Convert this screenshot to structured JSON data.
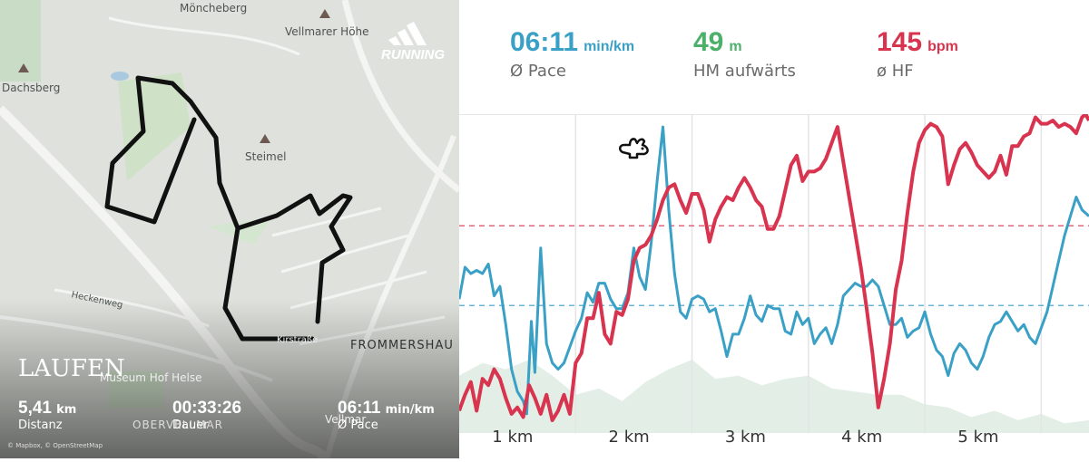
{
  "map": {
    "brand": "LAUFEN",
    "logo_text": "RUNNING",
    "attribution": "© Mapbox, © OpenStreetMap",
    "places": {
      "moencheberg": "Möncheberg",
      "vellmarer_hoehe": "Vellmarer Höhe",
      "dachsberg": "Dachsberg",
      "steimel": "Steimel",
      "heckenweg": "Heckenweg",
      "museum": "Museum Hof Helse",
      "frommershausen": "FROMMERSHAU",
      "oberveliimar": "OBERVELLMAR",
      "vellmar": "Vellmar",
      "kirstrasse": "Kirstraße"
    },
    "summary": {
      "distance_value": "5,41",
      "distance_unit": "km",
      "distance_label": "Distanz",
      "duration_value": "00:33:26",
      "duration_label": "Dauer",
      "pace_value": "06:11",
      "pace_unit": "min/km",
      "pace_label": "Ø Pace"
    }
  },
  "stats": {
    "pace": {
      "value": "06:11",
      "unit": "min/km",
      "label": "Ø Pace",
      "color": "#3aa0c6"
    },
    "elevation": {
      "value": "49",
      "unit": "m",
      "label": "HM aufwärts",
      "color": "#4caf6a"
    },
    "heart_rate": {
      "value": "145",
      "unit": "bpm",
      "label": "ø HF",
      "color": "#d8344f"
    }
  },
  "icons": {
    "rabbit": "rabbit-icon",
    "logo": "adidas-logo-icon"
  },
  "chart_data": {
    "type": "line",
    "x_axis": {
      "ticks": [
        1,
        2,
        3,
        4,
        5
      ],
      "tick_labels": [
        "1 km",
        "2 km",
        "3 km",
        "4 km",
        "5 km"
      ],
      "range": [
        0,
        5.41
      ]
    },
    "grid": true,
    "series": [
      {
        "id": "heart_rate",
        "color": "#d8344f",
        "average": 0.35,
        "values": [
          [
            0.0,
            0.93
          ],
          [
            0.05,
            0.88
          ],
          [
            0.1,
            0.84
          ],
          [
            0.15,
            0.93
          ],
          [
            0.2,
            0.83
          ],
          [
            0.25,
            0.85
          ],
          [
            0.3,
            0.8
          ],
          [
            0.35,
            0.83
          ],
          [
            0.4,
            0.89
          ],
          [
            0.45,
            0.94
          ],
          [
            0.5,
            0.92
          ],
          [
            0.55,
            0.95
          ],
          [
            0.6,
            0.85
          ],
          [
            0.65,
            0.89
          ],
          [
            0.7,
            0.94
          ],
          [
            0.75,
            0.88
          ],
          [
            0.8,
            0.96
          ],
          [
            0.85,
            0.93
          ],
          [
            0.9,
            0.88
          ],
          [
            0.95,
            0.94
          ],
          [
            1.0,
            0.78
          ],
          [
            1.05,
            0.75
          ],
          [
            1.1,
            0.64
          ],
          [
            1.15,
            0.64
          ],
          [
            1.2,
            0.56
          ],
          [
            1.25,
            0.69
          ],
          [
            1.3,
            0.72
          ],
          [
            1.35,
            0.62
          ],
          [
            1.4,
            0.63
          ],
          [
            1.45,
            0.58
          ],
          [
            1.5,
            0.46
          ],
          [
            1.55,
            0.42
          ],
          [
            1.6,
            0.41
          ],
          [
            1.65,
            0.38
          ],
          [
            1.7,
            0.33
          ],
          [
            1.75,
            0.27
          ],
          [
            1.8,
            0.23
          ],
          [
            1.85,
            0.22
          ],
          [
            1.9,
            0.27
          ],
          [
            1.95,
            0.31
          ],
          [
            2.0,
            0.25
          ],
          [
            2.05,
            0.25
          ],
          [
            2.1,
            0.3
          ],
          [
            2.15,
            0.4
          ],
          [
            2.2,
            0.33
          ],
          [
            2.25,
            0.29
          ],
          [
            2.3,
            0.26
          ],
          [
            2.35,
            0.27
          ],
          [
            2.4,
            0.23
          ],
          [
            2.45,
            0.2
          ],
          [
            2.5,
            0.23
          ],
          [
            2.55,
            0.27
          ],
          [
            2.6,
            0.29
          ],
          [
            2.65,
            0.36
          ],
          [
            2.7,
            0.36
          ],
          [
            2.75,
            0.32
          ],
          [
            2.8,
            0.24
          ],
          [
            2.85,
            0.16
          ],
          [
            2.9,
            0.13
          ],
          [
            2.95,
            0.21
          ],
          [
            3.0,
            0.18
          ],
          [
            3.05,
            0.18
          ],
          [
            3.1,
            0.17
          ],
          [
            3.15,
            0.14
          ],
          [
            3.2,
            0.09
          ],
          [
            3.25,
            0.04
          ],
          [
            3.3,
            0.15
          ],
          [
            3.35,
            0.26
          ],
          [
            3.4,
            0.37
          ],
          [
            3.45,
            0.48
          ],
          [
            3.5,
            0.61
          ],
          [
            3.55,
            0.75
          ],
          [
            3.6,
            0.92
          ],
          [
            3.65,
            0.83
          ],
          [
            3.7,
            0.72
          ],
          [
            3.75,
            0.55
          ],
          [
            3.8,
            0.46
          ],
          [
            3.85,
            0.31
          ],
          [
            3.9,
            0.18
          ],
          [
            3.95,
            0.09
          ],
          [
            4.0,
            0.05
          ],
          [
            4.05,
            0.03
          ],
          [
            4.1,
            0.04
          ],
          [
            4.15,
            0.07
          ],
          [
            4.2,
            0.22
          ],
          [
            4.25,
            0.16
          ],
          [
            4.3,
            0.11
          ],
          [
            4.35,
            0.09
          ],
          [
            4.4,
            0.12
          ],
          [
            4.45,
            0.16
          ],
          [
            4.5,
            0.18
          ],
          [
            4.55,
            0.2
          ],
          [
            4.6,
            0.18
          ],
          [
            4.65,
            0.13
          ],
          [
            4.7,
            0.19
          ],
          [
            4.75,
            0.1
          ],
          [
            4.8,
            0.1
          ],
          [
            4.85,
            0.07
          ],
          [
            4.9,
            0.06
          ],
          [
            4.95,
            0.01
          ],
          [
            5.0,
            0.03
          ],
          [
            5.05,
            0.03
          ],
          [
            5.1,
            0.02
          ],
          [
            5.15,
            0.04
          ],
          [
            5.2,
            0.03
          ],
          [
            5.25,
            0.04
          ],
          [
            5.3,
            0.06
          ],
          [
            5.35,
            0.01
          ],
          [
            5.38,
            0.0
          ],
          [
            5.41,
            0.02
          ]
        ]
      },
      {
        "id": "pace",
        "color": "#3aa0c6",
        "average": 0.6,
        "values": [
          [
            0.0,
            0.58
          ],
          [
            0.05,
            0.48
          ],
          [
            0.1,
            0.5
          ],
          [
            0.15,
            0.49
          ],
          [
            0.2,
            0.5
          ],
          [
            0.25,
            0.47
          ],
          [
            0.3,
            0.57
          ],
          [
            0.35,
            0.54
          ],
          [
            0.4,
            0.66
          ],
          [
            0.45,
            0.8
          ],
          [
            0.5,
            0.87
          ],
          [
            0.55,
            0.9
          ],
          [
            0.58,
            0.94
          ],
          [
            0.62,
            0.65
          ],
          [
            0.65,
            0.81
          ],
          [
            0.7,
            0.42
          ],
          [
            0.75,
            0.72
          ],
          [
            0.8,
            0.78
          ],
          [
            0.85,
            0.8
          ],
          [
            0.9,
            0.78
          ],
          [
            0.95,
            0.73
          ],
          [
            1.0,
            0.68
          ],
          [
            1.05,
            0.64
          ],
          [
            1.1,
            0.56
          ],
          [
            1.15,
            0.59
          ],
          [
            1.2,
            0.53
          ],
          [
            1.25,
            0.53
          ],
          [
            1.3,
            0.58
          ],
          [
            1.35,
            0.61
          ],
          [
            1.4,
            0.61
          ],
          [
            1.45,
            0.56
          ],
          [
            1.5,
            0.42
          ],
          [
            1.55,
            0.51
          ],
          [
            1.6,
            0.55
          ],
          [
            1.65,
            0.4
          ],
          [
            1.7,
            0.21
          ],
          [
            1.75,
            0.04
          ],
          [
            1.8,
            0.3
          ],
          [
            1.85,
            0.5
          ],
          [
            1.9,
            0.62
          ],
          [
            1.95,
            0.64
          ],
          [
            2.0,
            0.58
          ],
          [
            2.05,
            0.57
          ],
          [
            2.1,
            0.58
          ],
          [
            2.15,
            0.62
          ],
          [
            2.2,
            0.61
          ],
          [
            2.25,
            0.68
          ],
          [
            2.3,
            0.76
          ],
          [
            2.35,
            0.69
          ],
          [
            2.4,
            0.69
          ],
          [
            2.45,
            0.64
          ],
          [
            2.5,
            0.57
          ],
          [
            2.55,
            0.63
          ],
          [
            2.6,
            0.65
          ],
          [
            2.65,
            0.6
          ],
          [
            2.7,
            0.61
          ],
          [
            2.75,
            0.61
          ],
          [
            2.8,
            0.68
          ],
          [
            2.85,
            0.69
          ],
          [
            2.9,
            0.62
          ],
          [
            2.95,
            0.66
          ],
          [
            3.0,
            0.64
          ],
          [
            3.05,
            0.72
          ],
          [
            3.1,
            0.69
          ],
          [
            3.15,
            0.67
          ],
          [
            3.2,
            0.72
          ],
          [
            3.25,
            0.66
          ],
          [
            3.3,
            0.57
          ],
          [
            3.35,
            0.55
          ],
          [
            3.4,
            0.53
          ],
          [
            3.45,
            0.54
          ],
          [
            3.5,
            0.54
          ],
          [
            3.55,
            0.52
          ],
          [
            3.6,
            0.54
          ],
          [
            3.65,
            0.6
          ],
          [
            3.7,
            0.66
          ],
          [
            3.75,
            0.66
          ],
          [
            3.8,
            0.64
          ],
          [
            3.85,
            0.7
          ],
          [
            3.9,
            0.68
          ],
          [
            3.95,
            0.67
          ],
          [
            4.0,
            0.62
          ],
          [
            4.05,
            0.69
          ],
          [
            4.1,
            0.74
          ],
          [
            4.15,
            0.76
          ],
          [
            4.2,
            0.82
          ],
          [
            4.25,
            0.75
          ],
          [
            4.3,
            0.72
          ],
          [
            4.35,
            0.74
          ],
          [
            4.4,
            0.78
          ],
          [
            4.45,
            0.8
          ],
          [
            4.5,
            0.76
          ],
          [
            4.55,
            0.7
          ],
          [
            4.6,
            0.66
          ],
          [
            4.65,
            0.65
          ],
          [
            4.7,
            0.62
          ],
          [
            4.75,
            0.65
          ],
          [
            4.8,
            0.68
          ],
          [
            4.85,
            0.66
          ],
          [
            4.9,
            0.7
          ],
          [
            4.95,
            0.72
          ],
          [
            5.0,
            0.67
          ],
          [
            5.05,
            0.62
          ],
          [
            5.1,
            0.54
          ],
          [
            5.15,
            0.46
          ],
          [
            5.2,
            0.38
          ],
          [
            5.25,
            0.32
          ],
          [
            5.3,
            0.26
          ],
          [
            5.35,
            0.3
          ],
          [
            5.41,
            0.32
          ]
        ]
      },
      {
        "id": "elevation",
        "color": "#e3efe6",
        "values": [
          [
            0.0,
            0.82
          ],
          [
            0.2,
            0.78
          ],
          [
            0.4,
            0.8
          ],
          [
            0.6,
            0.77
          ],
          [
            0.8,
            0.82
          ],
          [
            1.0,
            0.88
          ],
          [
            1.2,
            0.86
          ],
          [
            1.4,
            0.9
          ],
          [
            1.6,
            0.84
          ],
          [
            1.8,
            0.8
          ],
          [
            2.0,
            0.77
          ],
          [
            2.2,
            0.83
          ],
          [
            2.4,
            0.82
          ],
          [
            2.6,
            0.85
          ],
          [
            2.8,
            0.83
          ],
          [
            3.0,
            0.82
          ],
          [
            3.2,
            0.86
          ],
          [
            3.4,
            0.87
          ],
          [
            3.6,
            0.88
          ],
          [
            3.8,
            0.88
          ],
          [
            4.0,
            0.91
          ],
          [
            4.2,
            0.92
          ],
          [
            4.4,
            0.95
          ],
          [
            4.6,
            0.93
          ],
          [
            4.8,
            0.96
          ],
          [
            5.0,
            0.94
          ],
          [
            5.2,
            0.97
          ],
          [
            5.41,
            0.96
          ]
        ]
      }
    ]
  }
}
